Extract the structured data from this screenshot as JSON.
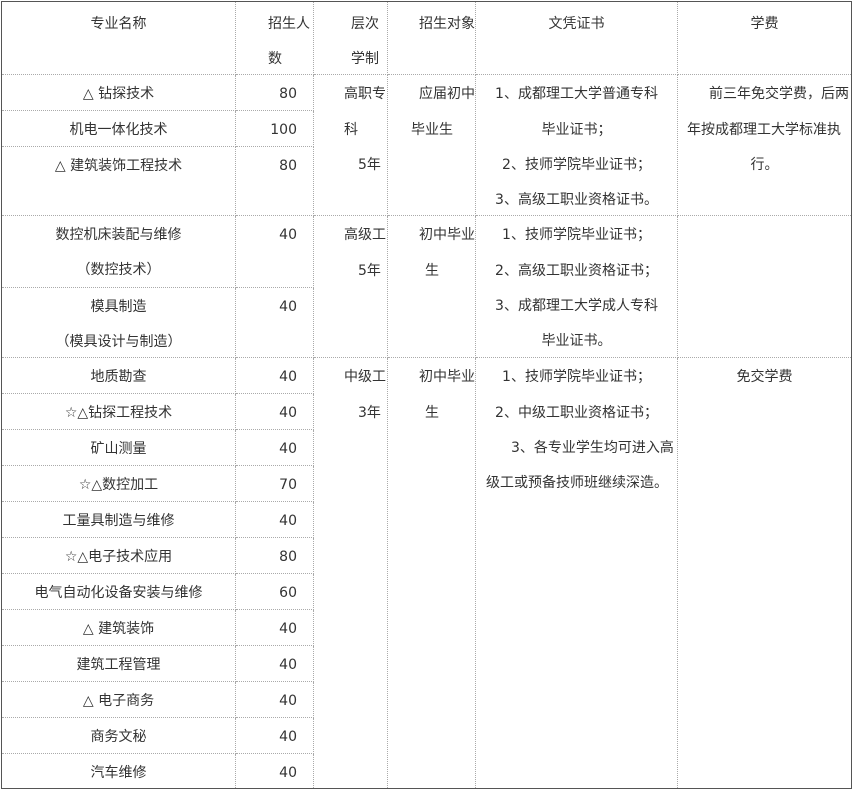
{
  "header": {
    "major": "专业名称",
    "enroll": [
      "招生人",
      "数"
    ],
    "level": [
      "层次",
      "学制"
    ],
    "target": "招生对象",
    "cert": "文凭证书",
    "fee": "学费"
  },
  "rows": [
    {
      "name": [
        "△ 钻探技术"
      ],
      "count": "80"
    },
    {
      "name": [
        "机电一体化技术"
      ],
      "count": "100"
    },
    {
      "name": [
        "△ 建筑装饰工程技术"
      ],
      "count": "80"
    },
    {
      "name": [
        "数控机床装配与维修",
        "（数控技术）"
      ],
      "count": "40"
    },
    {
      "name": [
        "模具制造",
        "（模具设计与制造）"
      ],
      "count": "40"
    },
    {
      "name": [
        "地质勘查"
      ],
      "count": "40"
    },
    {
      "name": [
        "☆△钻探工程技术"
      ],
      "count": "40"
    },
    {
      "name": [
        "矿山测量"
      ],
      "count": "40"
    },
    {
      "name": [
        "☆△数控加工"
      ],
      "count": "70"
    },
    {
      "name": [
        "工量具制造与维修"
      ],
      "count": "40"
    },
    {
      "name": [
        "☆△电子技术应用"
      ],
      "count": "80"
    },
    {
      "name": [
        "电气自动化设备安装与维修"
      ],
      "count": "60"
    },
    {
      "name": [
        "△ 建筑装饰"
      ],
      "count": "40"
    },
    {
      "name": [
        "建筑工程管理"
      ],
      "count": "40"
    },
    {
      "name": [
        "△ 电子商务"
      ],
      "count": "40"
    },
    {
      "name": [
        "商务文秘"
      ],
      "count": "40"
    },
    {
      "name": [
        "汽车维修"
      ],
      "count": "40"
    }
  ],
  "groups": [
    {
      "level": [
        "高职专",
        "科",
        "5年"
      ],
      "target": [
        "应届初中",
        "毕业生"
      ],
      "cert": [
        "1、成都理工大学普通专科",
        "毕业证书；",
        "2、技师学院毕业证书；",
        "3、高级工职业资格证书。"
      ],
      "fee": [
        "前三年免交学费，后两",
        "年按成都理工大学标准执",
        "行。"
      ]
    },
    {
      "level": [
        "高级工",
        "5年"
      ],
      "target": [
        "初中毕业",
        "生"
      ],
      "cert": [
        "1、技师学院毕业证书；",
        "2、高级工职业资格证书；",
        "3、成都理工大学成人专科",
        "毕业证书。"
      ]
    },
    {
      "level": [
        "中级工",
        "3年"
      ],
      "target": [
        "初中毕业",
        "生"
      ],
      "cert": [
        "1、技师学院毕业证书；",
        "2、中级工职业资格证书；",
        "3、各专业学生均可进入高",
        "级工或预备技师班继续深造。"
      ],
      "fee": [
        "免交学费"
      ]
    }
  ]
}
